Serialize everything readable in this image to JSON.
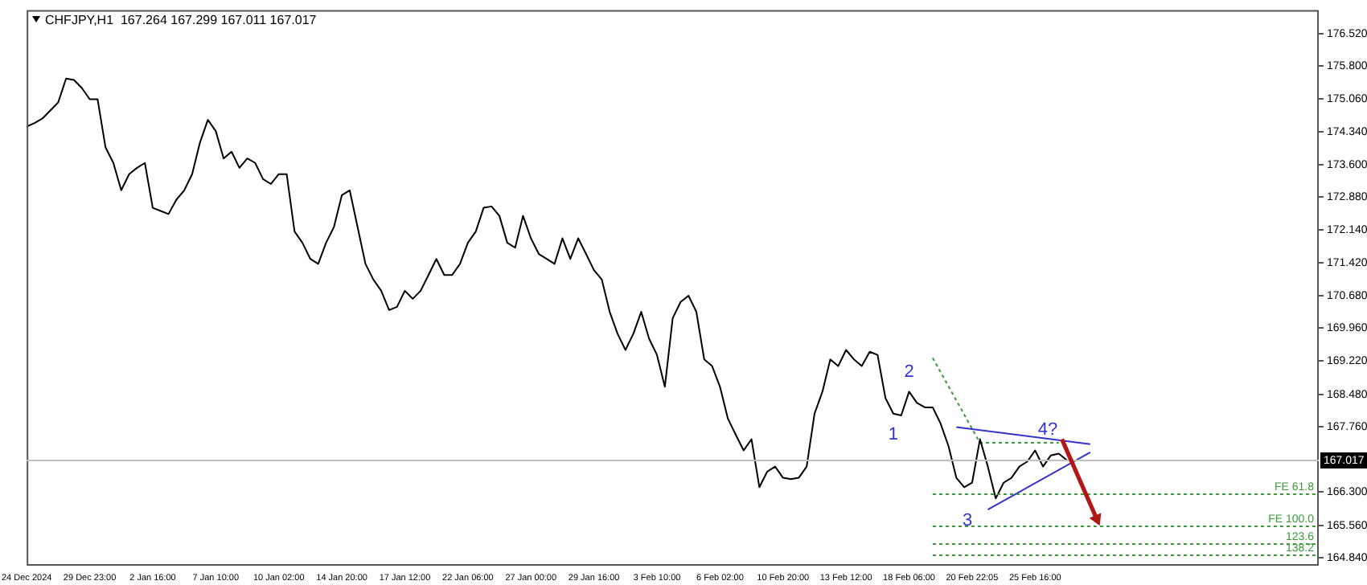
{
  "chart_data": {
    "type": "line",
    "title": "CHFJPY,H1  167.264 167.299 167.011 167.017",
    "categories": [
      "24 Dec 2024",
      null,
      null,
      null,
      null,
      null,
      null,
      null,
      "29 Dec 23:00",
      null,
      null,
      null,
      null,
      null,
      null,
      null,
      "2 Jan 16:00",
      null,
      null,
      null,
      null,
      null,
      null,
      null,
      "7 Jan 10:00",
      null,
      null,
      null,
      null,
      null,
      null,
      null,
      "10 Jan 02:00",
      null,
      null,
      null,
      null,
      null,
      null,
      null,
      "14 Jan 20:00",
      null,
      null,
      null,
      null,
      null,
      null,
      null,
      "17 Jan 12:00",
      null,
      null,
      null,
      null,
      null,
      null,
      null,
      "22 Jan 06:00",
      null,
      null,
      null,
      null,
      null,
      null,
      null,
      "27 Jan 00:00",
      null,
      null,
      null,
      null,
      null,
      null,
      null,
      "29 Jan 16:00",
      null,
      null,
      null,
      null,
      null,
      null,
      null,
      "3 Feb 10:00",
      null,
      null,
      null,
      null,
      null,
      null,
      null,
      "6 Feb 02:00",
      null,
      null,
      null,
      null,
      null,
      null,
      null,
      "10 Feb 20:00",
      null,
      null,
      null,
      null,
      null,
      null,
      null,
      "13 Feb 12:00",
      null,
      null,
      null,
      null,
      null,
      null,
      null,
      "18 Feb 06:00",
      null,
      null,
      null,
      null,
      null,
      null,
      null,
      "20 Feb 22:05",
      null,
      null,
      null,
      null,
      null,
      null,
      null,
      "25 Feb 16:00",
      null,
      null,
      null,
      null,
      null,
      null,
      null,
      null,
      null,
      null,
      null,
      null,
      null,
      null,
      null,
      null,
      null,
      null,
      null,
      null,
      null,
      null,
      null,
      null,
      null,
      null,
      null,
      null,
      null,
      null,
      null,
      null,
      null,
      null,
      null,
      null
    ],
    "series": [
      {
        "color": "#000000",
        "values": [
          174.45,
          174.53,
          174.63,
          174.81,
          174.99,
          175.52,
          175.49,
          175.31,
          175.06,
          175.06,
          173.99,
          173.64,
          173.03,
          173.39,
          173.53,
          173.64,
          172.64,
          172.57,
          172.5,
          172.82,
          173.03,
          173.39,
          174.1,
          174.6,
          174.35,
          173.74,
          173.89,
          173.53,
          173.74,
          173.64,
          173.28,
          173.17,
          173.39,
          173.39,
          172.11,
          171.86,
          171.5,
          171.39,
          171.86,
          172.21,
          172.92,
          173.03,
          172.21,
          171.39,
          171.04,
          170.79,
          170.36,
          170.43,
          170.79,
          170.61,
          170.79,
          171.14,
          171.5,
          171.14,
          171.14,
          171.39,
          171.86,
          172.11,
          172.64,
          172.67,
          172.46,
          171.86,
          171.75,
          172.46,
          171.96,
          171.61,
          171.5,
          171.39,
          171.96,
          171.5,
          171.96,
          171.61,
          171.25,
          171.04,
          170.32,
          169.83,
          169.47,
          169.83,
          170.32,
          169.72,
          169.36,
          168.65,
          170.18,
          170.54,
          170.68,
          170.32,
          169.26,
          169.11,
          168.65,
          167.94,
          167.58,
          167.23,
          167.48,
          166.41,
          166.76,
          166.87,
          166.62,
          166.59,
          166.62,
          166.87,
          168.05,
          168.54,
          169.26,
          169.11,
          169.47,
          169.26,
          169.11,
          169.43,
          169.36,
          168.4,
          168.05,
          168.01,
          168.54,
          168.29,
          168.19,
          168.19,
          167.83,
          167.33,
          166.62,
          166.41,
          166.51,
          167.48,
          166.87,
          166.16,
          166.51,
          166.62,
          166.87,
          166.98,
          167.23,
          166.87,
          167.12,
          167.16,
          167.017,
          null,
          null,
          null,
          null,
          null,
          null,
          null,
          null,
          null,
          null,
          null,
          null,
          null,
          null,
          null,
          null,
          null,
          null,
          null,
          null,
          null,
          null,
          null,
          null,
          null,
          null,
          null,
          null,
          null,
          null,
          null,
          null
        ]
      },
      {
        "color": "#3333cc",
        "values": [
          null,
          null,
          null,
          null,
          null,
          null,
          null,
          null,
          null,
          null,
          null,
          null,
          null,
          null,
          null,
          null,
          null,
          null,
          null,
          null,
          null,
          null,
          null,
          null,
          null,
          null,
          null,
          null,
          null,
          null,
          null,
          null,
          null,
          null,
          null,
          null,
          null,
          null,
          null,
          null,
          null,
          null,
          null,
          null,
          null,
          null,
          null,
          null,
          null,
          null,
          null,
          null,
          null,
          null,
          null,
          null,
          null,
          null,
          null,
          null,
          null,
          null,
          null,
          null,
          null,
          null,
          null,
          null,
          null,
          null,
          null,
          null,
          null,
          null,
          null,
          null,
          null,
          null,
          null,
          null,
          null,
          null,
          null,
          null,
          null,
          null,
          null,
          null,
          null,
          null,
          null,
          null,
          null,
          null,
          null,
          null,
          null,
          null,
          null,
          null,
          null,
          null,
          null,
          null,
          null,
          null,
          null,
          null,
          null,
          null,
          null,
          null,
          null,
          null,
          null,
          null,
          null,
          null,
          167.75,
          null,
          null,
          null,
          null,
          null,
          null,
          null,
          null,
          null,
          null,
          null,
          null,
          null,
          null,
          null,
          null,
          167.37,
          null,
          null,
          null,
          null,
          null,
          null,
          null,
          null,
          null,
          null,
          null,
          null,
          null,
          null,
          null,
          null,
          null,
          null,
          null,
          null,
          null,
          null,
          null,
          null,
          null,
          null,
          null,
          null,
          null
        ]
      },
      {
        "color": "#3333cc",
        "values": [
          null,
          null,
          null,
          null,
          null,
          null,
          null,
          null,
          null,
          null,
          null,
          null,
          null,
          null,
          null,
          null,
          null,
          null,
          null,
          null,
          null,
          null,
          null,
          null,
          null,
          null,
          null,
          null,
          null,
          null,
          null,
          null,
          null,
          null,
          null,
          null,
          null,
          null,
          null,
          null,
          null,
          null,
          null,
          null,
          null,
          null,
          null,
          null,
          null,
          null,
          null,
          null,
          null,
          null,
          null,
          null,
          null,
          null,
          null,
          null,
          null,
          null,
          null,
          null,
          null,
          null,
          null,
          null,
          null,
          null,
          null,
          null,
          null,
          null,
          null,
          null,
          null,
          null,
          null,
          null,
          null,
          null,
          null,
          null,
          null,
          null,
          null,
          null,
          null,
          null,
          null,
          null,
          null,
          null,
          null,
          null,
          null,
          null,
          null,
          null,
          null,
          null,
          null,
          null,
          null,
          null,
          null,
          null,
          null,
          null,
          null,
          null,
          null,
          null,
          null,
          null,
          null,
          null,
          null,
          null,
          null,
          null,
          165.91,
          null,
          null,
          null,
          null,
          null,
          null,
          null,
          null,
          null,
          null,
          null,
          null,
          167.19,
          null,
          null,
          null,
          null,
          null,
          null,
          null,
          null,
          null,
          null,
          null,
          null,
          null,
          null,
          null,
          null,
          null,
          null,
          null,
          null,
          null,
          null,
          null,
          null,
          null,
          null,
          null,
          null,
          null
        ]
      },
      {
        "color": "#3a9a3a",
        "line_style": "dotted",
        "values": [
          null,
          null,
          null,
          null,
          null,
          null,
          null,
          null,
          null,
          null,
          null,
          null,
          null,
          null,
          null,
          null,
          null,
          null,
          null,
          null,
          null,
          null,
          null,
          null,
          null,
          null,
          null,
          null,
          null,
          null,
          null,
          null,
          null,
          null,
          null,
          null,
          null,
          null,
          null,
          null,
          null,
          null,
          null,
          null,
          null,
          null,
          null,
          null,
          null,
          null,
          null,
          null,
          null,
          null,
          null,
          null,
          null,
          null,
          null,
          null,
          null,
          null,
          null,
          null,
          null,
          null,
          null,
          null,
          null,
          null,
          null,
          null,
          null,
          null,
          null,
          null,
          null,
          null,
          null,
          null,
          null,
          null,
          null,
          null,
          null,
          null,
          null,
          null,
          null,
          null,
          null,
          null,
          null,
          null,
          null,
          null,
          null,
          null,
          null,
          null,
          null,
          null,
          null,
          null,
          null,
          null,
          null,
          null,
          null,
          null,
          null,
          null,
          null,
          null,
          null,
          169.29,
          null,
          null,
          null,
          null,
          null,
          167.4,
          null,
          null,
          null,
          null,
          null,
          null,
          null,
          null,
          null,
          167.4,
          null,
          null,
          null,
          null,
          null,
          null,
          null,
          null,
          null,
          null,
          null,
          null,
          null,
          null,
          null,
          null,
          null,
          null,
          null,
          null,
          null,
          null,
          null,
          null,
          null,
          null,
          null,
          null,
          null,
          null,
          null,
          null,
          null
        ]
      }
    ],
    "ylim": [
      164.66,
      177.05
    ],
    "yticks": [
      {
        "value": 176.52,
        "label": "176.520"
      },
      {
        "value": 175.8,
        "label": "175.800"
      },
      {
        "value": 175.06,
        "label": "175.060"
      },
      {
        "value": 174.34,
        "label": "174.340"
      },
      {
        "value": 173.6,
        "label": "173.600"
      },
      {
        "value": 172.88,
        "label": "172.880"
      },
      {
        "value": 172.14,
        "label": "172.140"
      },
      {
        "value": 171.42,
        "label": "171.420"
      },
      {
        "value": 170.68,
        "label": "170.680"
      },
      {
        "value": 169.96,
        "label": "169.960"
      },
      {
        "value": 169.22,
        "label": "169.220"
      },
      {
        "value": 168.48,
        "label": "168.480"
      },
      {
        "value": 167.76,
        "label": "167.760"
      },
      {
        "value": 166.3,
        "label": "166.300"
      },
      {
        "value": 165.56,
        "label": "165.560"
      },
      {
        "value": 164.84,
        "label": "164.840"
      }
    ],
    "ref_lines": [
      {
        "axis": "y",
        "value": 167.017,
        "label": "167.017",
        "color": "#c0c0c0",
        "line_style": "solid"
      },
      {
        "axis": "y",
        "value": 166.27,
        "label": "FE 61.8",
        "color": "#3a9a3a",
        "line_style": "dotted"
      },
      {
        "axis": "y",
        "value": 165.55,
        "label": "FE 100.0",
        "color": "#3a9a3a",
        "line_style": "dotted"
      },
      {
        "axis": "y",
        "value": 165.16,
        "color": "#3a9a3a",
        "line_style": "dotted"
      },
      {
        "axis": "y",
        "value": 164.91,
        "color": "#3a9a3a",
        "line_style": "dotted"
      }
    ],
    "annotations": [
      "1",
      "2",
      {
        "text": "3",
        "y": 165.66
      },
      {
        "text": "4?",
        "y": 167.69
      },
      {
        "text": "123.6",
        "y": 165.16
      },
      {
        "text": "138.2",
        "y": 164.91
      }
    ],
    "legend": false,
    "marker": "none",
    "line_style": "solid"
  }
}
